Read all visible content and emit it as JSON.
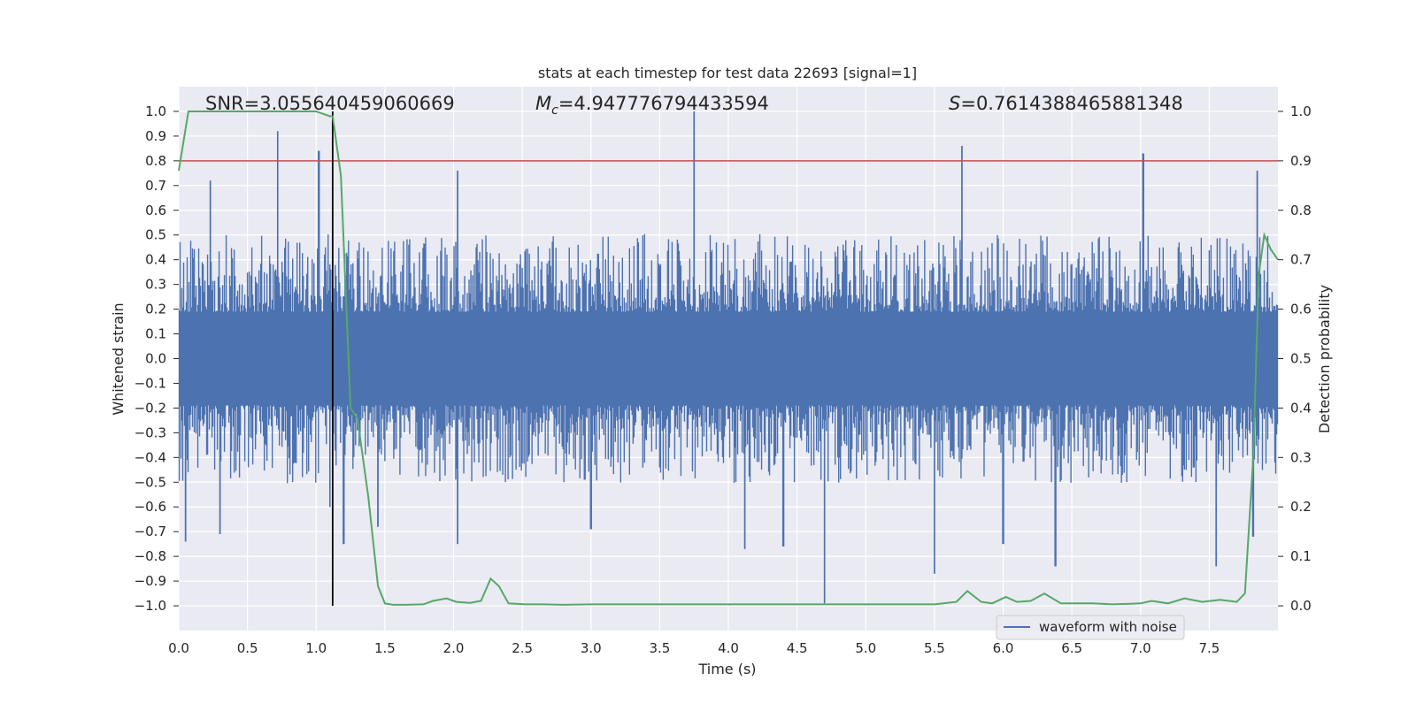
{
  "chart_data": {
    "type": "line",
    "title": "stats at each timestep for test data 22693 [signal=1]",
    "annotations": {
      "snr": "SNR=3.055640459060669",
      "mc_symbol": "M",
      "mc_sub": "c",
      "mc_value": "=4.947776794433594",
      "s_symbol": "S",
      "s_value": "=0.7614388465881348"
    },
    "xlabel": "Time (s)",
    "ylabel": "Whitened strain",
    "ylabel_right": "Detection probability",
    "xlim": [
      0,
      8.0
    ],
    "ylim": [
      -1.1,
      1.1
    ],
    "ylim_right": [
      -0.05,
      1.05
    ],
    "x_ticks": [
      0.0,
      0.5,
      1.0,
      1.5,
      2.0,
      2.5,
      3.0,
      3.5,
      4.0,
      4.5,
      5.0,
      5.5,
      6.0,
      6.5,
      7.0,
      7.5
    ],
    "y_ticks": [
      1.0,
      0.9,
      0.8,
      0.7,
      0.6,
      0.5,
      0.4,
      0.3,
      0.2,
      0.1,
      0.0,
      -0.1,
      -0.2,
      -0.3,
      -0.4,
      -0.5,
      -0.6,
      -0.7,
      -0.8,
      -0.9,
      -1.0
    ],
    "y_ticks_right": [
      1.0,
      0.9,
      0.8,
      0.7,
      0.6,
      0.5,
      0.4,
      0.3,
      0.2,
      0.1,
      0.0
    ],
    "grid": true,
    "legend": {
      "position": "lower-right",
      "entries": [
        "waveform with noise"
      ]
    },
    "threshold_line": {
      "y": 0.8,
      "color": "#c44e52"
    },
    "marker_line": {
      "x": 1.12,
      "y_from": -1.0,
      "y_to": 1.0,
      "color": "#000000"
    },
    "series": [
      {
        "name": "waveform with noise",
        "color": "#4c72b0",
        "axis": "left",
        "envelope": {
          "typical_upper": 0.42,
          "typical_lower": -0.42,
          "spikes": [
            {
              "x": 0.05,
              "y": -0.74
            },
            {
              "x": 0.23,
              "y": 0.72
            },
            {
              "x": 0.3,
              "y": -0.71
            },
            {
              "x": 0.72,
              "y": 0.92
            },
            {
              "x": 1.02,
              "y": 0.84
            },
            {
              "x": 1.1,
              "y": -0.6
            },
            {
              "x": 1.2,
              "y": -0.75
            },
            {
              "x": 1.45,
              "y": -0.68
            },
            {
              "x": 2.03,
              "y": 0.76
            },
            {
              "x": 2.03,
              "y": -0.75
            },
            {
              "x": 3.0,
              "y": -0.69
            },
            {
              "x": 3.75,
              "y": 1.0
            },
            {
              "x": 4.12,
              "y": -0.77
            },
            {
              "x": 4.4,
              "y": -0.76
            },
            {
              "x": 4.7,
              "y": -0.99
            },
            {
              "x": 5.5,
              "y": -0.87
            },
            {
              "x": 5.7,
              "y": 0.86
            },
            {
              "x": 6.0,
              "y": -0.75
            },
            {
              "x": 6.38,
              "y": -0.84
            },
            {
              "x": 7.02,
              "y": 0.83
            },
            {
              "x": 7.55,
              "y": -0.84
            },
            {
              "x": 7.85,
              "y": 0.76
            },
            {
              "x": 7.82,
              "y": -0.72
            }
          ]
        }
      },
      {
        "name": "",
        "color": "#55a868",
        "axis": "right",
        "x": [
          0.0,
          0.07,
          0.12,
          0.5,
          0.9,
          1.0,
          1.1,
          1.12,
          1.18,
          1.25,
          1.3,
          1.38,
          1.45,
          1.5,
          1.56,
          1.65,
          1.78,
          1.85,
          1.95,
          2.02,
          2.12,
          2.2,
          2.27,
          2.33,
          2.4,
          2.52,
          2.65,
          2.8,
          3.0,
          3.4,
          3.8,
          4.2,
          4.6,
          5.0,
          5.5,
          5.66,
          5.74,
          5.84,
          5.92,
          6.02,
          6.1,
          6.2,
          6.3,
          6.42,
          6.52,
          6.65,
          6.8,
          7.0,
          7.08,
          7.2,
          7.32,
          7.45,
          7.58,
          7.7,
          7.76,
          7.82,
          7.86,
          7.9,
          7.95,
          8.0
        ],
        "y": [
          0.88,
          1.0,
          1.0,
          1.0,
          1.0,
          1.0,
          0.99,
          0.99,
          0.87,
          0.4,
          0.38,
          0.22,
          0.04,
          0.005,
          0.002,
          0.002,
          0.003,
          0.01,
          0.015,
          0.008,
          0.006,
          0.01,
          0.055,
          0.04,
          0.005,
          0.003,
          0.003,
          0.002,
          0.003,
          0.003,
          0.003,
          0.003,
          0.003,
          0.003,
          0.003,
          0.008,
          0.03,
          0.008,
          0.005,
          0.018,
          0.008,
          0.01,
          0.025,
          0.005,
          0.005,
          0.005,
          0.003,
          0.005,
          0.01,
          0.005,
          0.015,
          0.008,
          0.012,
          0.008,
          0.025,
          0.3,
          0.67,
          0.75,
          0.72,
          0.7
        ]
      }
    ]
  }
}
